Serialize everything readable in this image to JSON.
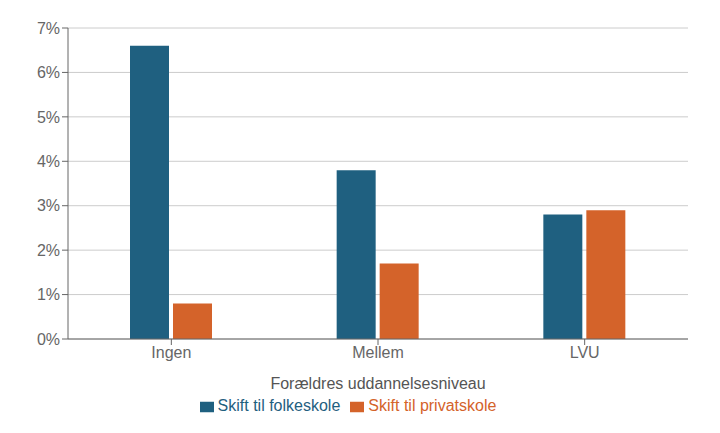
{
  "chart_data": {
    "type": "bar",
    "xlabel": "Forældres uddannelsesniveau",
    "categories": [
      "Ingen",
      "Mellem",
      "LVU"
    ],
    "series": [
      {
        "name": "Skift til folkeskole",
        "color": "#1f6080",
        "values": [
          0.066,
          0.038,
          0.028
        ]
      },
      {
        "name": "Skift til privatskole",
        "color": "#d4632a",
        "values": [
          0.008,
          0.017,
          0.029
        ]
      }
    ],
    "ylim": [
      0,
      0.07
    ],
    "yticks": [
      {
        "value": 0.0,
        "label": "0%"
      },
      {
        "value": 0.01,
        "label": "1%"
      },
      {
        "value": 0.02,
        "label": "2%"
      },
      {
        "value": 0.03,
        "label": "3%"
      },
      {
        "value": 0.04,
        "label": "4%"
      },
      {
        "value": 0.05,
        "label": "5%"
      },
      {
        "value": 0.06,
        "label": "6%"
      },
      {
        "value": 0.07,
        "label": "7%"
      }
    ],
    "grid": true,
    "legend": "bottom"
  }
}
